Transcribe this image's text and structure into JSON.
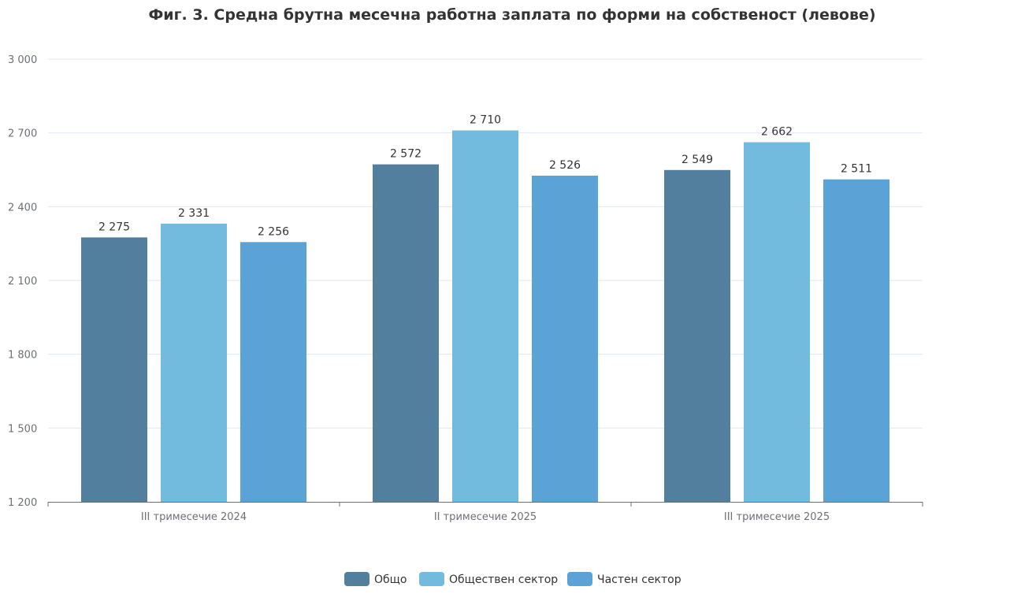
{
  "chart_data": {
    "type": "bar",
    "title": "Фиг. 3. Средна брутна месечна работна заплата по форми на собственост (левове)",
    "xlabel": "",
    "ylabel": "",
    "ylim": [
      1200,
      3000
    ],
    "yticks": [
      1200,
      1500,
      1800,
      2100,
      2400,
      2700,
      3000
    ],
    "ytick_labels": [
      "1 200",
      "1 500",
      "1 800",
      "2 100",
      "2 400",
      "2 700",
      "3 000"
    ],
    "grid": true,
    "legend_position": "bottom",
    "categories": [
      "III тримесечие 2024",
      "II тримесечие 2025",
      "III тримесечие 2025"
    ],
    "series": [
      {
        "name": "Общо",
        "color": "#537f9f",
        "values": [
          2275,
          2572,
          2549
        ],
        "labels": [
          "2 275",
          "2 572",
          "2 549"
        ]
      },
      {
        "name": "Обществен сектор",
        "color": "#72bade",
        "values": [
          2331,
          2710,
          2662
        ],
        "labels": [
          "2 331",
          "2 710",
          "2 662"
        ]
      },
      {
        "name": "Частен сектор",
        "color": "#5ba3d6",
        "values": [
          2256,
          2526,
          2511
        ],
        "labels": [
          "2 256",
          "2 526",
          "2 511"
        ]
      }
    ]
  }
}
